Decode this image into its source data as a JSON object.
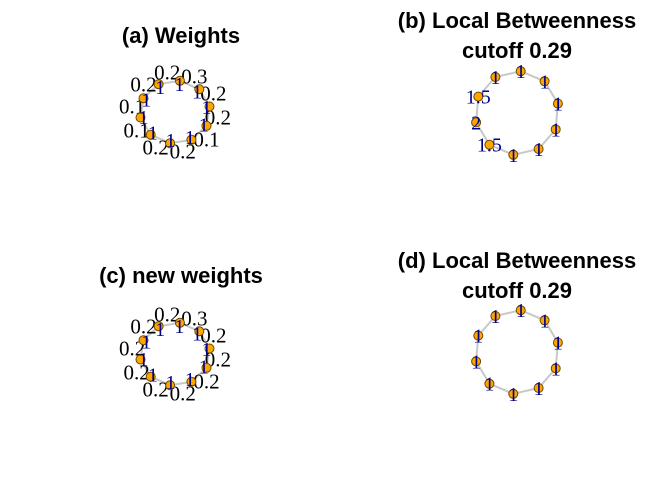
{
  "colors": {
    "node_fill": "#ffa500",
    "node_stroke": "#6b4a00",
    "edge": "#c8c8c8",
    "node_label": "#00008b",
    "edge_label": "#000000",
    "title": "#000000"
  },
  "panels": [
    {
      "id": "a",
      "title_lines": [
        "(a) Weights"
      ],
      "node_labels": [
        "1",
        "1",
        "1",
        "1",
        "1",
        "1",
        "1",
        "1",
        "1",
        "1"
      ],
      "edge_labels": [
        "0.3",
        "0.2",
        "0.2",
        "0.1",
        "0.2",
        "0.2",
        "0.1",
        "0.1",
        "0.2",
        "0.2"
      ]
    },
    {
      "id": "b",
      "title_lines": [
        "(b) Local Betweenness",
        "cutoff 0.29"
      ],
      "node_labels": [
        "1",
        "1",
        "1",
        "1",
        "1",
        "1",
        "1.5",
        "2",
        "1.5",
        "1"
      ],
      "edge_labels": []
    },
    {
      "id": "c",
      "title_lines": [
        "(c) new weights"
      ],
      "node_labels": [
        "1",
        "1",
        "1",
        "1",
        "1",
        "1",
        "1",
        "1",
        "1",
        "1"
      ],
      "edge_labels": [
        "0.3",
        "0.2",
        "0.2",
        "0.2",
        "0.2",
        "0.2",
        "0.2",
        "0.2",
        "0.2",
        "0.2"
      ]
    },
    {
      "id": "d",
      "title_lines": [
        "(d) Local Betweenness",
        "cutoff 0.29"
      ],
      "node_labels": [
        "1",
        "1",
        "1",
        "1",
        "1",
        "1",
        "1",
        "1",
        "1",
        "1"
      ],
      "edge_labels": []
    }
  ]
}
